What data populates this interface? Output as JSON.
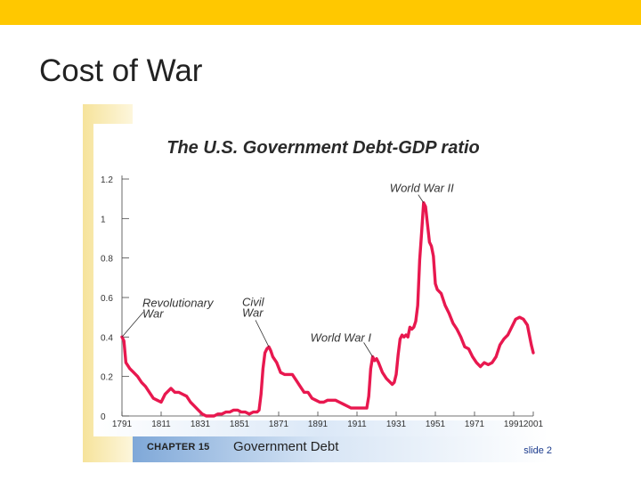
{
  "slide": {
    "title": "Cost of War",
    "accent_color": "#ffc800"
  },
  "footer": {
    "chapter": "CHAPTER 15",
    "title": "Government Debt",
    "slide_label": "slide 2"
  },
  "chart_data": {
    "type": "line",
    "title": "The U.S. Government Debt-GDP ratio",
    "xlabel": "",
    "ylabel": "",
    "xlim": [
      1791,
      2001
    ],
    "ylim": [
      0,
      1.2
    ],
    "x_ticks": [
      1791,
      1811,
      1831,
      1851,
      1871,
      1891,
      1911,
      1931,
      1951,
      1971,
      1991,
      2001
    ],
    "y_ticks": [
      0,
      0.2,
      0.4,
      0.6,
      0.8,
      1,
      1.2
    ],
    "y_tick_labels": [
      "0",
      "0.2",
      "0.4",
      "0.6",
      "0.8",
      "1",
      "1.2"
    ],
    "line_color": "#e8184f",
    "grid": false,
    "series": [
      {
        "name": "",
        "x": [
          1791,
          1792,
          1793,
          1795,
          1797,
          1799,
          1801,
          1803,
          1805,
          1807,
          1809,
          1811,
          1813,
          1815,
          1816,
          1818,
          1820,
          1822,
          1824,
          1826,
          1828,
          1830,
          1832,
          1834,
          1836,
          1838,
          1840,
          1842,
          1844,
          1846,
          1848,
          1850,
          1852,
          1854,
          1856,
          1858,
          1860,
          1861,
          1862,
          1863,
          1864,
          1865,
          1866,
          1867,
          1868,
          1870,
          1872,
          1874,
          1876,
          1878,
          1880,
          1882,
          1884,
          1886,
          1888,
          1890,
          1892,
          1894,
          1896,
          1898,
          1900,
          1902,
          1904,
          1906,
          1908,
          1910,
          1912,
          1914,
          1916,
          1917,
          1918,
          1919,
          1920,
          1921,
          1922,
          1924,
          1926,
          1928,
          1929,
          1930,
          1931,
          1932,
          1933,
          1934,
          1935,
          1936,
          1937,
          1938,
          1939,
          1940,
          1941,
          1942,
          1943,
          1944,
          1945,
          1946,
          1947,
          1948,
          1949,
          1950,
          1951,
          1952,
          1954,
          1956,
          1958,
          1960,
          1962,
          1964,
          1966,
          1968,
          1970,
          1972,
          1974,
          1976,
          1978,
          1980,
          1982,
          1984,
          1986,
          1988,
          1990,
          1992,
          1994,
          1996,
          1998,
          2000,
          2001
        ],
        "y": [
          0.4,
          0.38,
          0.27,
          0.24,
          0.22,
          0.2,
          0.17,
          0.15,
          0.12,
          0.09,
          0.08,
          0.07,
          0.11,
          0.13,
          0.14,
          0.12,
          0.12,
          0.11,
          0.1,
          0.07,
          0.05,
          0.03,
          0.01,
          0.0,
          0.0,
          0.0,
          0.01,
          0.01,
          0.02,
          0.02,
          0.03,
          0.03,
          0.02,
          0.02,
          0.01,
          0.02,
          0.02,
          0.03,
          0.11,
          0.24,
          0.32,
          0.34,
          0.35,
          0.33,
          0.3,
          0.27,
          0.22,
          0.21,
          0.21,
          0.21,
          0.18,
          0.15,
          0.12,
          0.12,
          0.09,
          0.08,
          0.07,
          0.07,
          0.08,
          0.08,
          0.08,
          0.07,
          0.06,
          0.05,
          0.04,
          0.04,
          0.04,
          0.04,
          0.04,
          0.1,
          0.24,
          0.3,
          0.28,
          0.29,
          0.27,
          0.22,
          0.19,
          0.17,
          0.16,
          0.17,
          0.21,
          0.31,
          0.39,
          0.41,
          0.4,
          0.41,
          0.4,
          0.45,
          0.44,
          0.45,
          0.48,
          0.56,
          0.79,
          0.93,
          1.08,
          1.06,
          0.97,
          0.88,
          0.86,
          0.81,
          0.67,
          0.64,
          0.62,
          0.56,
          0.52,
          0.47,
          0.44,
          0.4,
          0.35,
          0.34,
          0.3,
          0.27,
          0.25,
          0.27,
          0.26,
          0.27,
          0.3,
          0.36,
          0.39,
          0.41,
          0.45,
          0.49,
          0.5,
          0.49,
          0.46,
          0.36,
          0.32
        ]
      }
    ],
    "annotations": [
      {
        "text": "World War II",
        "x": 1945,
        "y": 1.08
      },
      {
        "text": "Revolutionary War",
        "x": 1791,
        "y": 0.4
      },
      {
        "text": "Civil War",
        "x": 1866,
        "y": 0.35
      },
      {
        "text": "World War I",
        "x": 1919,
        "y": 0.3
      }
    ]
  }
}
